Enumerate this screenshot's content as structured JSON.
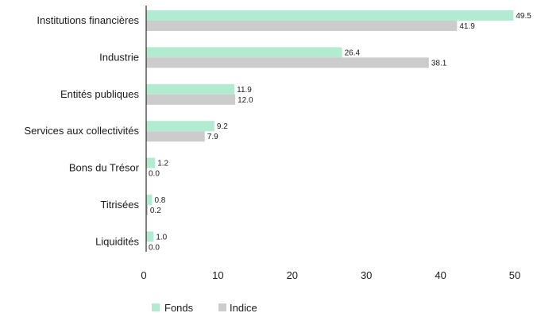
{
  "chart_data": {
    "type": "bar",
    "orientation": "horizontal",
    "categories": [
      "Institutions financières",
      "Industrie",
      "Entités publiques",
      "Services aux collectivités",
      "Bons du Trésor",
      "Titrisées",
      "Liquidités"
    ],
    "series": [
      {
        "name": "Fonds",
        "color": "#b3ebd2",
        "values": [
          49.5,
          26.4,
          11.9,
          9.2,
          1.2,
          0.8,
          1.0
        ],
        "labels": [
          "49.5",
          "26.4",
          "11.9",
          "9.2",
          "1.2",
          "0.8",
          "1.0"
        ]
      },
      {
        "name": "Indice",
        "color": "#cccccc",
        "values": [
          41.9,
          38.1,
          12.0,
          7.9,
          0.0,
          0.2,
          0.0
        ],
        "labels": [
          "41.9",
          "38.1",
          "12.0",
          "7.9",
          "0.0",
          "0.2",
          "0.0"
        ]
      }
    ],
    "xlim": [
      0,
      50
    ],
    "xticks": [
      "0",
      "10",
      "20",
      "30",
      "40",
      "50"
    ],
    "grid": false,
    "legend": "bottom-left"
  }
}
